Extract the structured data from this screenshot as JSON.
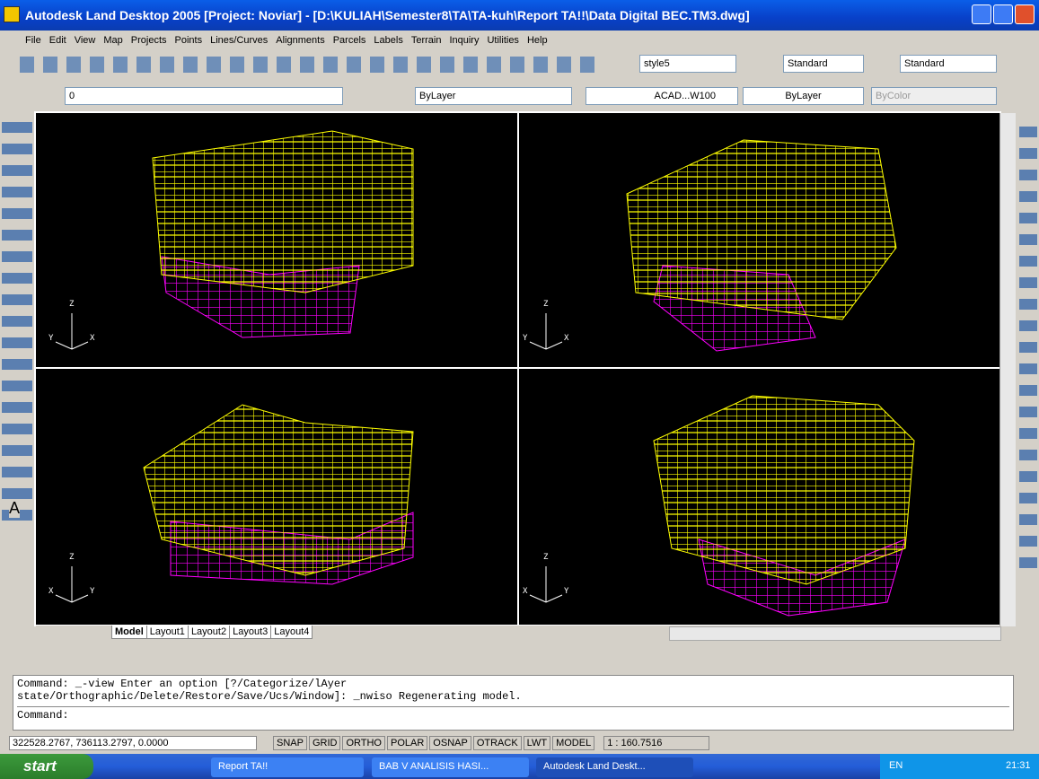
{
  "title_bar": {
    "title": "Autodesk Land Desktop 2005 [Project: Noviar] - [D:\\KULIAH\\Semester8\\TA\\TA-kuh\\Report TA!!\\Data Digital  BEC.TM3.dwg]"
  },
  "menu": [
    "File",
    "Edit",
    "View",
    "Map",
    "Projects",
    "Points",
    "Lines/Curves",
    "Alignments",
    "Parcels",
    "Labels",
    "Terrain",
    "Inquiry",
    "Utilities",
    "Help"
  ],
  "toolbar": {
    "text_style": "style5",
    "dim_style": "Standard",
    "table_style": "Standard"
  },
  "layer_toolbar": {
    "layer": "0",
    "color": "ByLayer",
    "linetype": "ACAD...W100",
    "lineweight": "ByLayer",
    "plot_style": "ByColor"
  },
  "draw_toolbar_text": "A",
  "viewports": [
    {
      "axis_labels": [
        "Z",
        "Y",
        "X"
      ]
    },
    {
      "axis_labels": [
        "Z",
        "Y",
        "X"
      ]
    },
    {
      "axis_labels": [
        "Z",
        "X",
        "Y"
      ]
    },
    {
      "axis_labels": [
        "Z",
        "X",
        "Y"
      ]
    }
  ],
  "tabs": [
    "Model",
    "Layout1",
    "Layout2",
    "Layout3",
    "Layout4"
  ],
  "command_window": {
    "lines": [
      "Command:  _-view Enter an option [?/Categorize/lAyer",
      "state/Orthographic/Delete/Restore/Save/Ucs/Window]: _nwiso Regenerating model."
    ],
    "prompt": "Command:"
  },
  "status_bar": {
    "coordinates": "322528.2767, 736113.2797, 0.0000",
    "toggles": [
      "SNAP",
      "GRID",
      "ORTHO",
      "POLAR",
      "OSNAP",
      "OTRACK",
      "LWT",
      "MODEL"
    ],
    "scale": "1 : 160.7516"
  },
  "taskbar": {
    "start": "start",
    "tasks": [
      "Report TA!!",
      "BAB V ANALISIS HASI...",
      "Autodesk Land Deskt..."
    ],
    "language": "EN",
    "clock": "21:31"
  }
}
